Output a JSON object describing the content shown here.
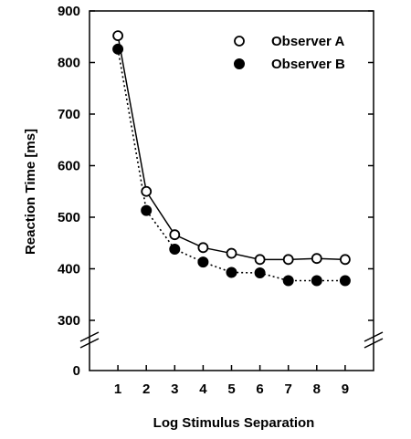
{
  "chart_data": {
    "type": "line",
    "title": "",
    "xlabel": "Log Stimulus Separation",
    "ylabel": "Reaction Time [ms]",
    "x": [
      1,
      2,
      3,
      4,
      5,
      6,
      7,
      8,
      9
    ],
    "xlim": [
      0,
      10
    ],
    "ylim": [
      250,
      900
    ],
    "y_axis_break": true,
    "y_break_label": "0",
    "yticks": [
      300,
      400,
      500,
      600,
      700,
      800,
      900
    ],
    "xticks": [
      1,
      2,
      3,
      4,
      5,
      6,
      7,
      8,
      9
    ],
    "legend_position": "top-right",
    "grid": false,
    "series": [
      {
        "name": "Observer A",
        "marker": "open-circle",
        "line_style": "solid",
        "values": [
          852,
          550,
          466,
          441,
          430,
          418,
          418,
          420,
          418
        ]
      },
      {
        "name": "Observer B",
        "marker": "filled-circle",
        "line_style": "dotted",
        "values": [
          826,
          513,
          438,
          413,
          393,
          392,
          377,
          377,
          377
        ]
      }
    ]
  }
}
